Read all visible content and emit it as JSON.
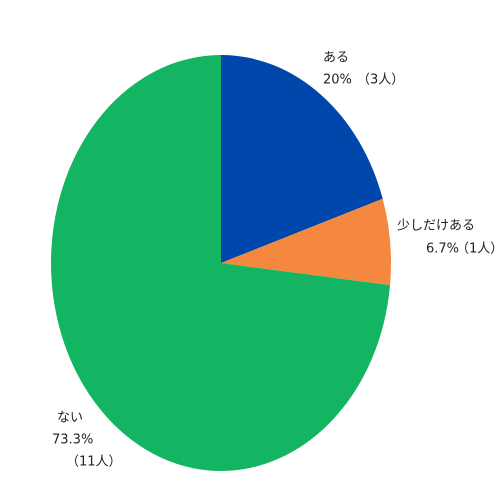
{
  "chart_data": {
    "type": "pie",
    "categories": [
      "ある",
      "少しだけある",
      "ない"
    ],
    "values": [
      20,
      6.7,
      73.3
    ],
    "value_labels": [
      "20%",
      "6.7%",
      "73.3%"
    ],
    "counts": [
      3,
      1,
      11
    ],
    "count_labels": [
      "（3人）",
      "（1人）",
      "（11人）"
    ],
    "colors": [
      "#0047ab",
      "#f5883f",
      "#13b563"
    ]
  }
}
